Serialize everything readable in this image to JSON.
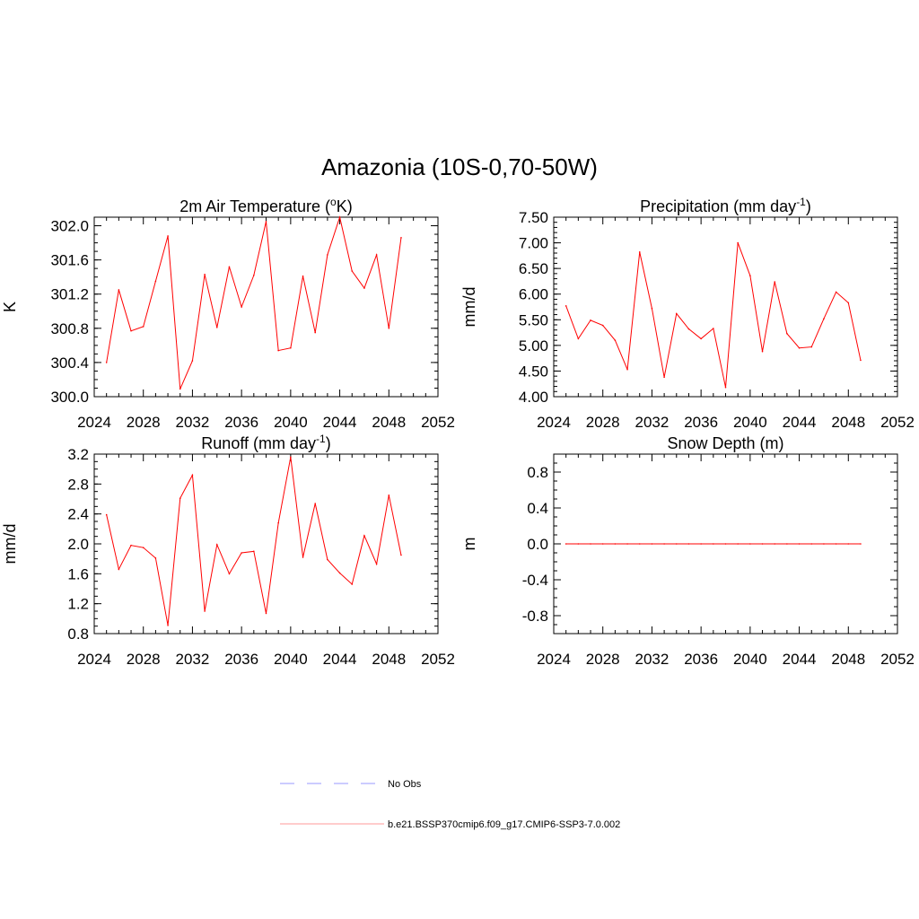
{
  "title": "Amazonia (10S-0,70-50W)",
  "colors": {
    "series": "#ff0000",
    "obs": "#9999ff",
    "legend_series": "#ff9999"
  },
  "legend": [
    {
      "label": "No Obs",
      "style": "dashed",
      "color": "#9999ff"
    },
    {
      "label": "b.e21.BSSP370cmip6.f09_g17.CMIP6-SSP3-7.0.002",
      "style": "solid",
      "color": "#ff9999"
    }
  ],
  "chart_data": [
    {
      "type": "line",
      "title_pre": "2m Air Temperature (",
      "title_sup": "o",
      "title_post": "K)",
      "ylabel": "K",
      "xlim": [
        2024,
        2052
      ],
      "ylim": [
        300.0,
        302.1
      ],
      "xticks": [
        2024,
        2028,
        2032,
        2036,
        2040,
        2044,
        2048,
        2052
      ],
      "xtick_labels": [
        "2024",
        "2028",
        "2032",
        "2036",
        "2040",
        "2044",
        "2048",
        "2052"
      ],
      "yticks": [
        300.0,
        300.4,
        300.8,
        301.2,
        301.6,
        302.0
      ],
      "ytick_labels": [
        "300.0",
        "300.4",
        "300.8",
        "301.2",
        "301.6",
        "302.0"
      ],
      "yminor": 0.1,
      "x": [
        2025,
        2026,
        2027,
        2028,
        2029,
        2030,
        2031,
        2032,
        2033,
        2034,
        2035,
        2036,
        2037,
        2038,
        2039,
        2040,
        2041,
        2042,
        2043,
        2044,
        2045,
        2046,
        2047,
        2048,
        2049
      ],
      "values": [
        300.4,
        301.25,
        300.77,
        300.82,
        301.35,
        301.88,
        300.09,
        300.42,
        301.43,
        300.81,
        301.52,
        301.05,
        301.42,
        302.05,
        300.54,
        300.57,
        301.41,
        300.75,
        301.66,
        302.1,
        301.47,
        301.27,
        301.66,
        300.8,
        301.86
      ]
    },
    {
      "type": "line",
      "title_pre": "Precipitation (mm day",
      "title_sup": "-1",
      "title_post": ")",
      "ylabel": "mm/d",
      "xlim": [
        2024,
        2052
      ],
      "ylim": [
        4.0,
        7.5
      ],
      "xticks": [
        2024,
        2028,
        2032,
        2036,
        2040,
        2044,
        2048,
        2052
      ],
      "xtick_labels": [
        "2024",
        "2028",
        "2032",
        "2036",
        "2040",
        "2044",
        "2048",
        "2052"
      ],
      "yticks": [
        4.0,
        4.5,
        5.0,
        5.5,
        6.0,
        6.5,
        7.0,
        7.5
      ],
      "ytick_labels": [
        "4.00",
        "4.50",
        "5.00",
        "5.50",
        "6.00",
        "6.50",
        "7.00",
        "7.50"
      ],
      "yminor": 0.1,
      "x": [
        2025,
        2026,
        2027,
        2028,
        2029,
        2030,
        2031,
        2032,
        2033,
        2034,
        2035,
        2036,
        2037,
        2038,
        2039,
        2040,
        2041,
        2042,
        2043,
        2044,
        2045,
        2046,
        2047,
        2048,
        2049
      ],
      "values": [
        5.77,
        5.13,
        5.49,
        5.39,
        5.1,
        4.53,
        6.82,
        5.72,
        4.38,
        5.62,
        5.32,
        5.13,
        5.33,
        4.18,
        7.0,
        6.36,
        4.88,
        6.24,
        5.23,
        4.95,
        4.97,
        5.52,
        6.04,
        5.83,
        4.71
      ]
    },
    {
      "type": "line",
      "title_pre": "Runoff (mm day",
      "title_sup": "-1",
      "title_post": ")",
      "ylabel": "mm/d",
      "xlim": [
        2024,
        2052
      ],
      "ylim": [
        0.8,
        3.2
      ],
      "xticks": [
        2024,
        2028,
        2032,
        2036,
        2040,
        2044,
        2048,
        2052
      ],
      "xtick_labels": [
        "2024",
        "2028",
        "2032",
        "2036",
        "2040",
        "2044",
        "2048",
        "2052"
      ],
      "yticks": [
        0.8,
        1.2,
        1.6,
        2.0,
        2.4,
        2.8,
        3.2
      ],
      "ytick_labels": [
        "0.8",
        "1.2",
        "1.6",
        "2.0",
        "2.4",
        "2.8",
        "3.2"
      ],
      "yminor": 0.1,
      "x": [
        2025,
        2026,
        2027,
        2028,
        2029,
        2030,
        2031,
        2032,
        2033,
        2034,
        2035,
        2036,
        2037,
        2038,
        2039,
        2040,
        2041,
        2042,
        2043,
        2044,
        2045,
        2046,
        2047,
        2048,
        2049
      ],
      "values": [
        2.39,
        1.66,
        1.98,
        1.95,
        1.81,
        0.91,
        2.61,
        2.92,
        1.1,
        1.99,
        1.6,
        1.88,
        1.9,
        1.07,
        2.28,
        3.16,
        1.82,
        2.54,
        1.79,
        1.61,
        1.46,
        2.11,
        1.73,
        2.65,
        1.85
      ]
    },
    {
      "type": "line",
      "title_pre": "Snow Depth (m)",
      "title_sup": "",
      "title_post": "",
      "ylabel": "m",
      "xlim": [
        2024,
        2052
      ],
      "ylim": [
        -1.0,
        1.0
      ],
      "xticks": [
        2024,
        2028,
        2032,
        2036,
        2040,
        2044,
        2048,
        2052
      ],
      "xtick_labels": [
        "2024",
        "2028",
        "2032",
        "2036",
        "2040",
        "2044",
        "2048",
        "2052"
      ],
      "yticks": [
        -0.8,
        -0.4,
        0.0,
        0.4,
        0.8
      ],
      "ytick_labels": [
        "-0.8",
        "-0.4",
        "0.0",
        "0.4",
        "0.8"
      ],
      "yminor": 0.1,
      "x": [
        2025,
        2026,
        2027,
        2028,
        2029,
        2030,
        2031,
        2032,
        2033,
        2034,
        2035,
        2036,
        2037,
        2038,
        2039,
        2040,
        2041,
        2042,
        2043,
        2044,
        2045,
        2046,
        2047,
        2048,
        2049
      ],
      "values": [
        0,
        0,
        0,
        0,
        0,
        0,
        0,
        0,
        0,
        0,
        0,
        0,
        0,
        0,
        0,
        0,
        0,
        0,
        0,
        0,
        0,
        0,
        0,
        0,
        0
      ]
    }
  ]
}
